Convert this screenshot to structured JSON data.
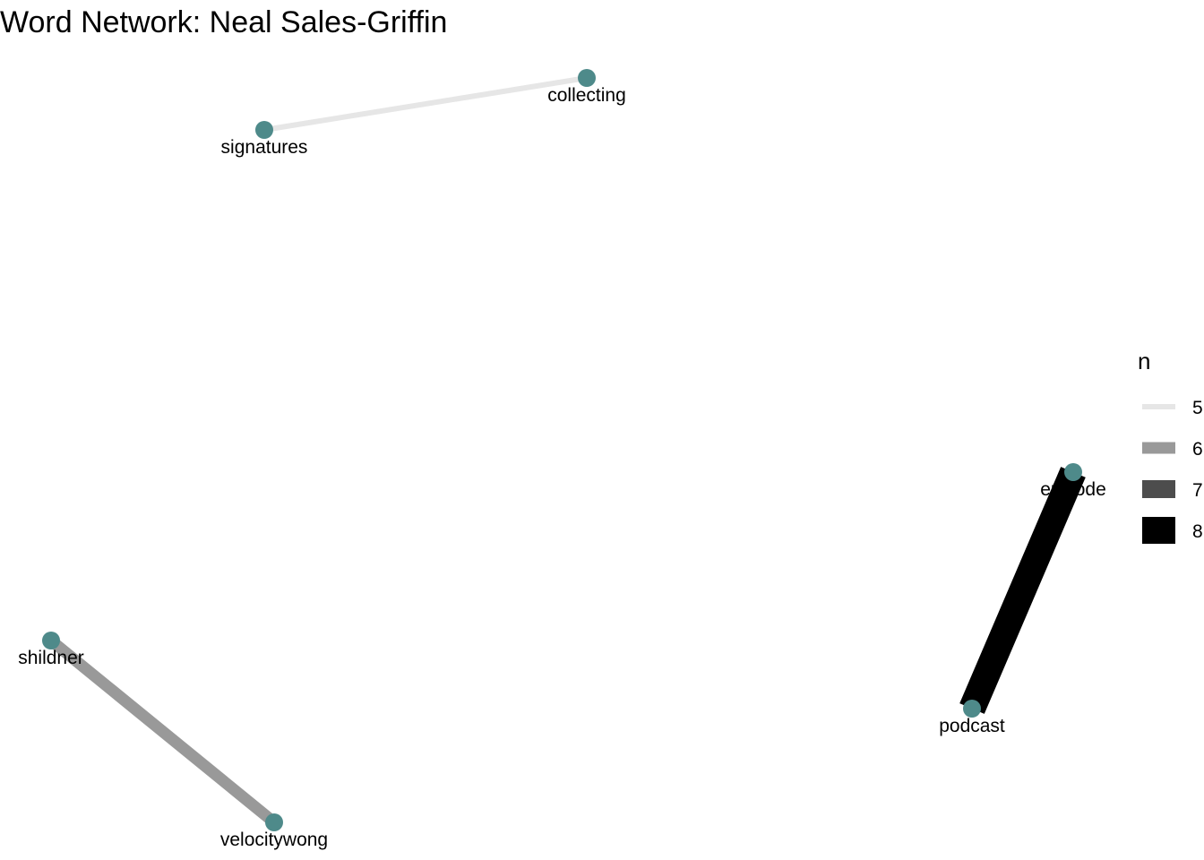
{
  "title": "Word Network: Neal Sales-Griffin",
  "graph": {
    "nodes": [
      {
        "id": "collecting",
        "label": "collecting"
      },
      {
        "id": "signatures",
        "label": "signatures"
      },
      {
        "id": "episode",
        "label": "episode"
      },
      {
        "id": "podcast",
        "label": "podcast"
      },
      {
        "id": "shildner",
        "label": "shildner"
      },
      {
        "id": "velocitywong",
        "label": "velocitywong"
      }
    ],
    "edges": [
      {
        "from": "signatures",
        "to": "collecting",
        "n": 5
      },
      {
        "from": "shildner",
        "to": "velocitywong",
        "n": 6
      },
      {
        "from": "episode",
        "to": "podcast",
        "n": 8
      }
    ]
  },
  "legend": {
    "title": "n",
    "entries": [
      {
        "label": "5",
        "color": "#e6e6e6"
      },
      {
        "label": "6",
        "color": "#999999"
      },
      {
        "label": "7",
        "color": "#4d4d4d"
      },
      {
        "label": "8",
        "color": "#000000"
      }
    ]
  },
  "colors": {
    "node": "#4e8a8a",
    "label": "#000000"
  }
}
